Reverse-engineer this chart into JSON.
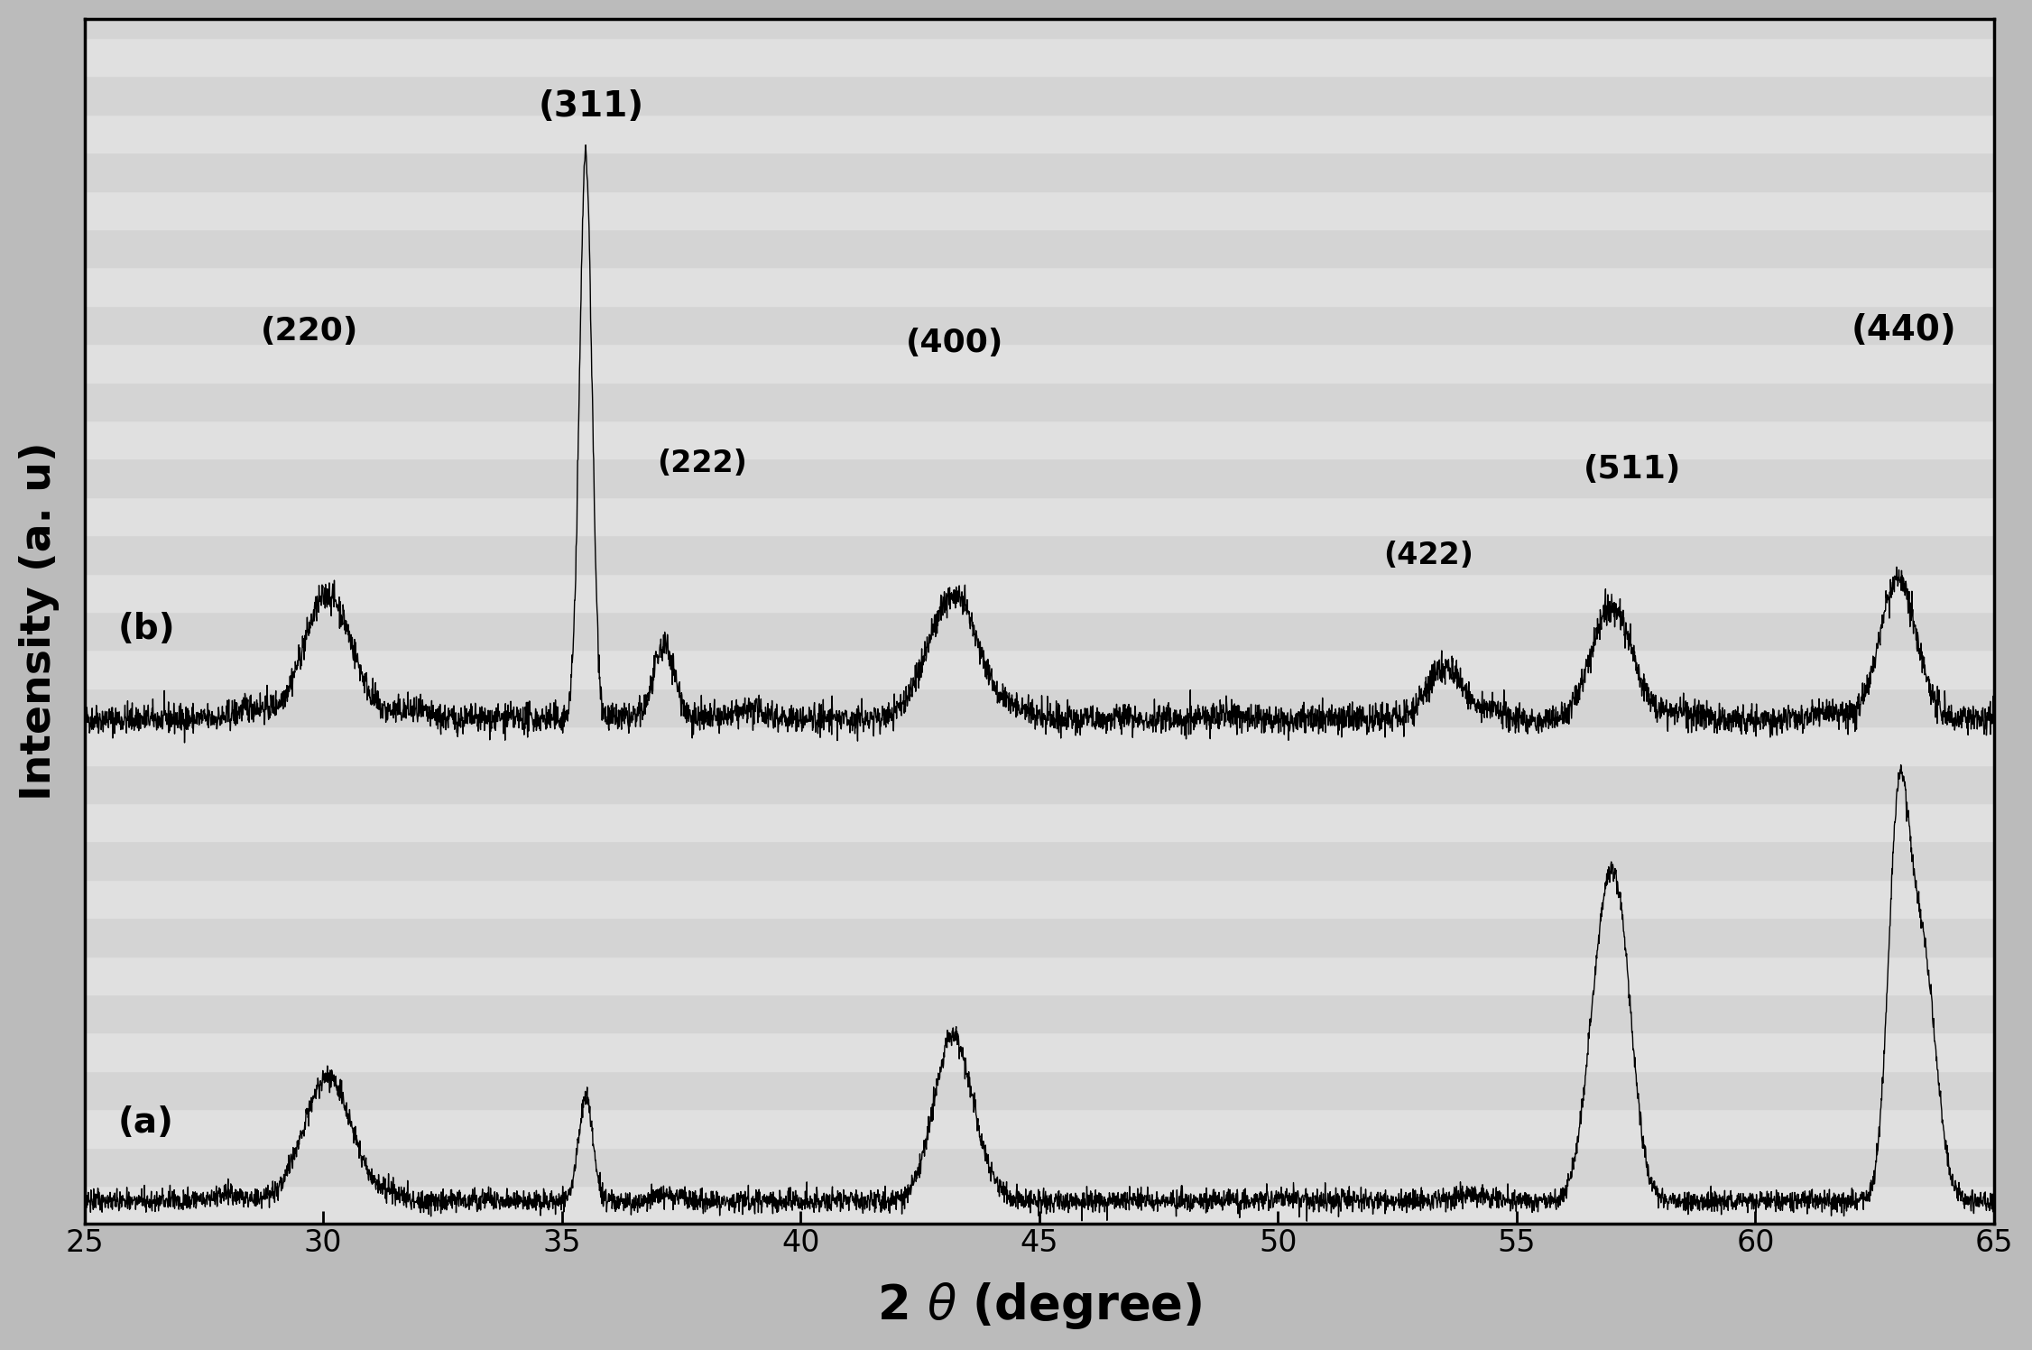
{
  "xlim": [
    25,
    65
  ],
  "xlabel": "2 θ (degree)",
  "ylabel": "Intensity (a. u)",
  "tick_labels": [
    25,
    30,
    35,
    40,
    45,
    50,
    55,
    60,
    65
  ],
  "tick_fontsize": 24,
  "label_fontsize": 30,
  "annotation_fontsize": 22,
  "series_label_fontsize": 24,
  "peaks_b": [
    30.1,
    35.5,
    37.15,
    43.2,
    53.5,
    57.0,
    63.0
  ],
  "heights_b": [
    0.22,
    1.0,
    0.13,
    0.22,
    0.09,
    0.2,
    0.25
  ],
  "widths_b": [
    0.5,
    0.13,
    0.22,
    0.52,
    0.38,
    0.42,
    0.38
  ],
  "peaks_a": [
    30.1,
    35.5,
    43.2,
    56.8,
    57.2,
    63.0,
    63.5
  ],
  "heights_a": [
    0.3,
    0.25,
    0.4,
    0.55,
    0.45,
    0.9,
    0.6
  ],
  "widths_a": [
    0.5,
    0.15,
    0.4,
    0.32,
    0.28,
    0.22,
    0.28
  ],
  "noise_level": 0.013,
  "b_baseline": 0.44,
  "b_scale": 0.5,
  "a_baseline": 0.02,
  "a_scale": 0.38,
  "stripe_colors": [
    "#e0e0e0",
    "#d4d4d4"
  ],
  "n_stripes": 30,
  "outer_bg": "#bbbbbb",
  "plot_bg": "#d8d8d8"
}
